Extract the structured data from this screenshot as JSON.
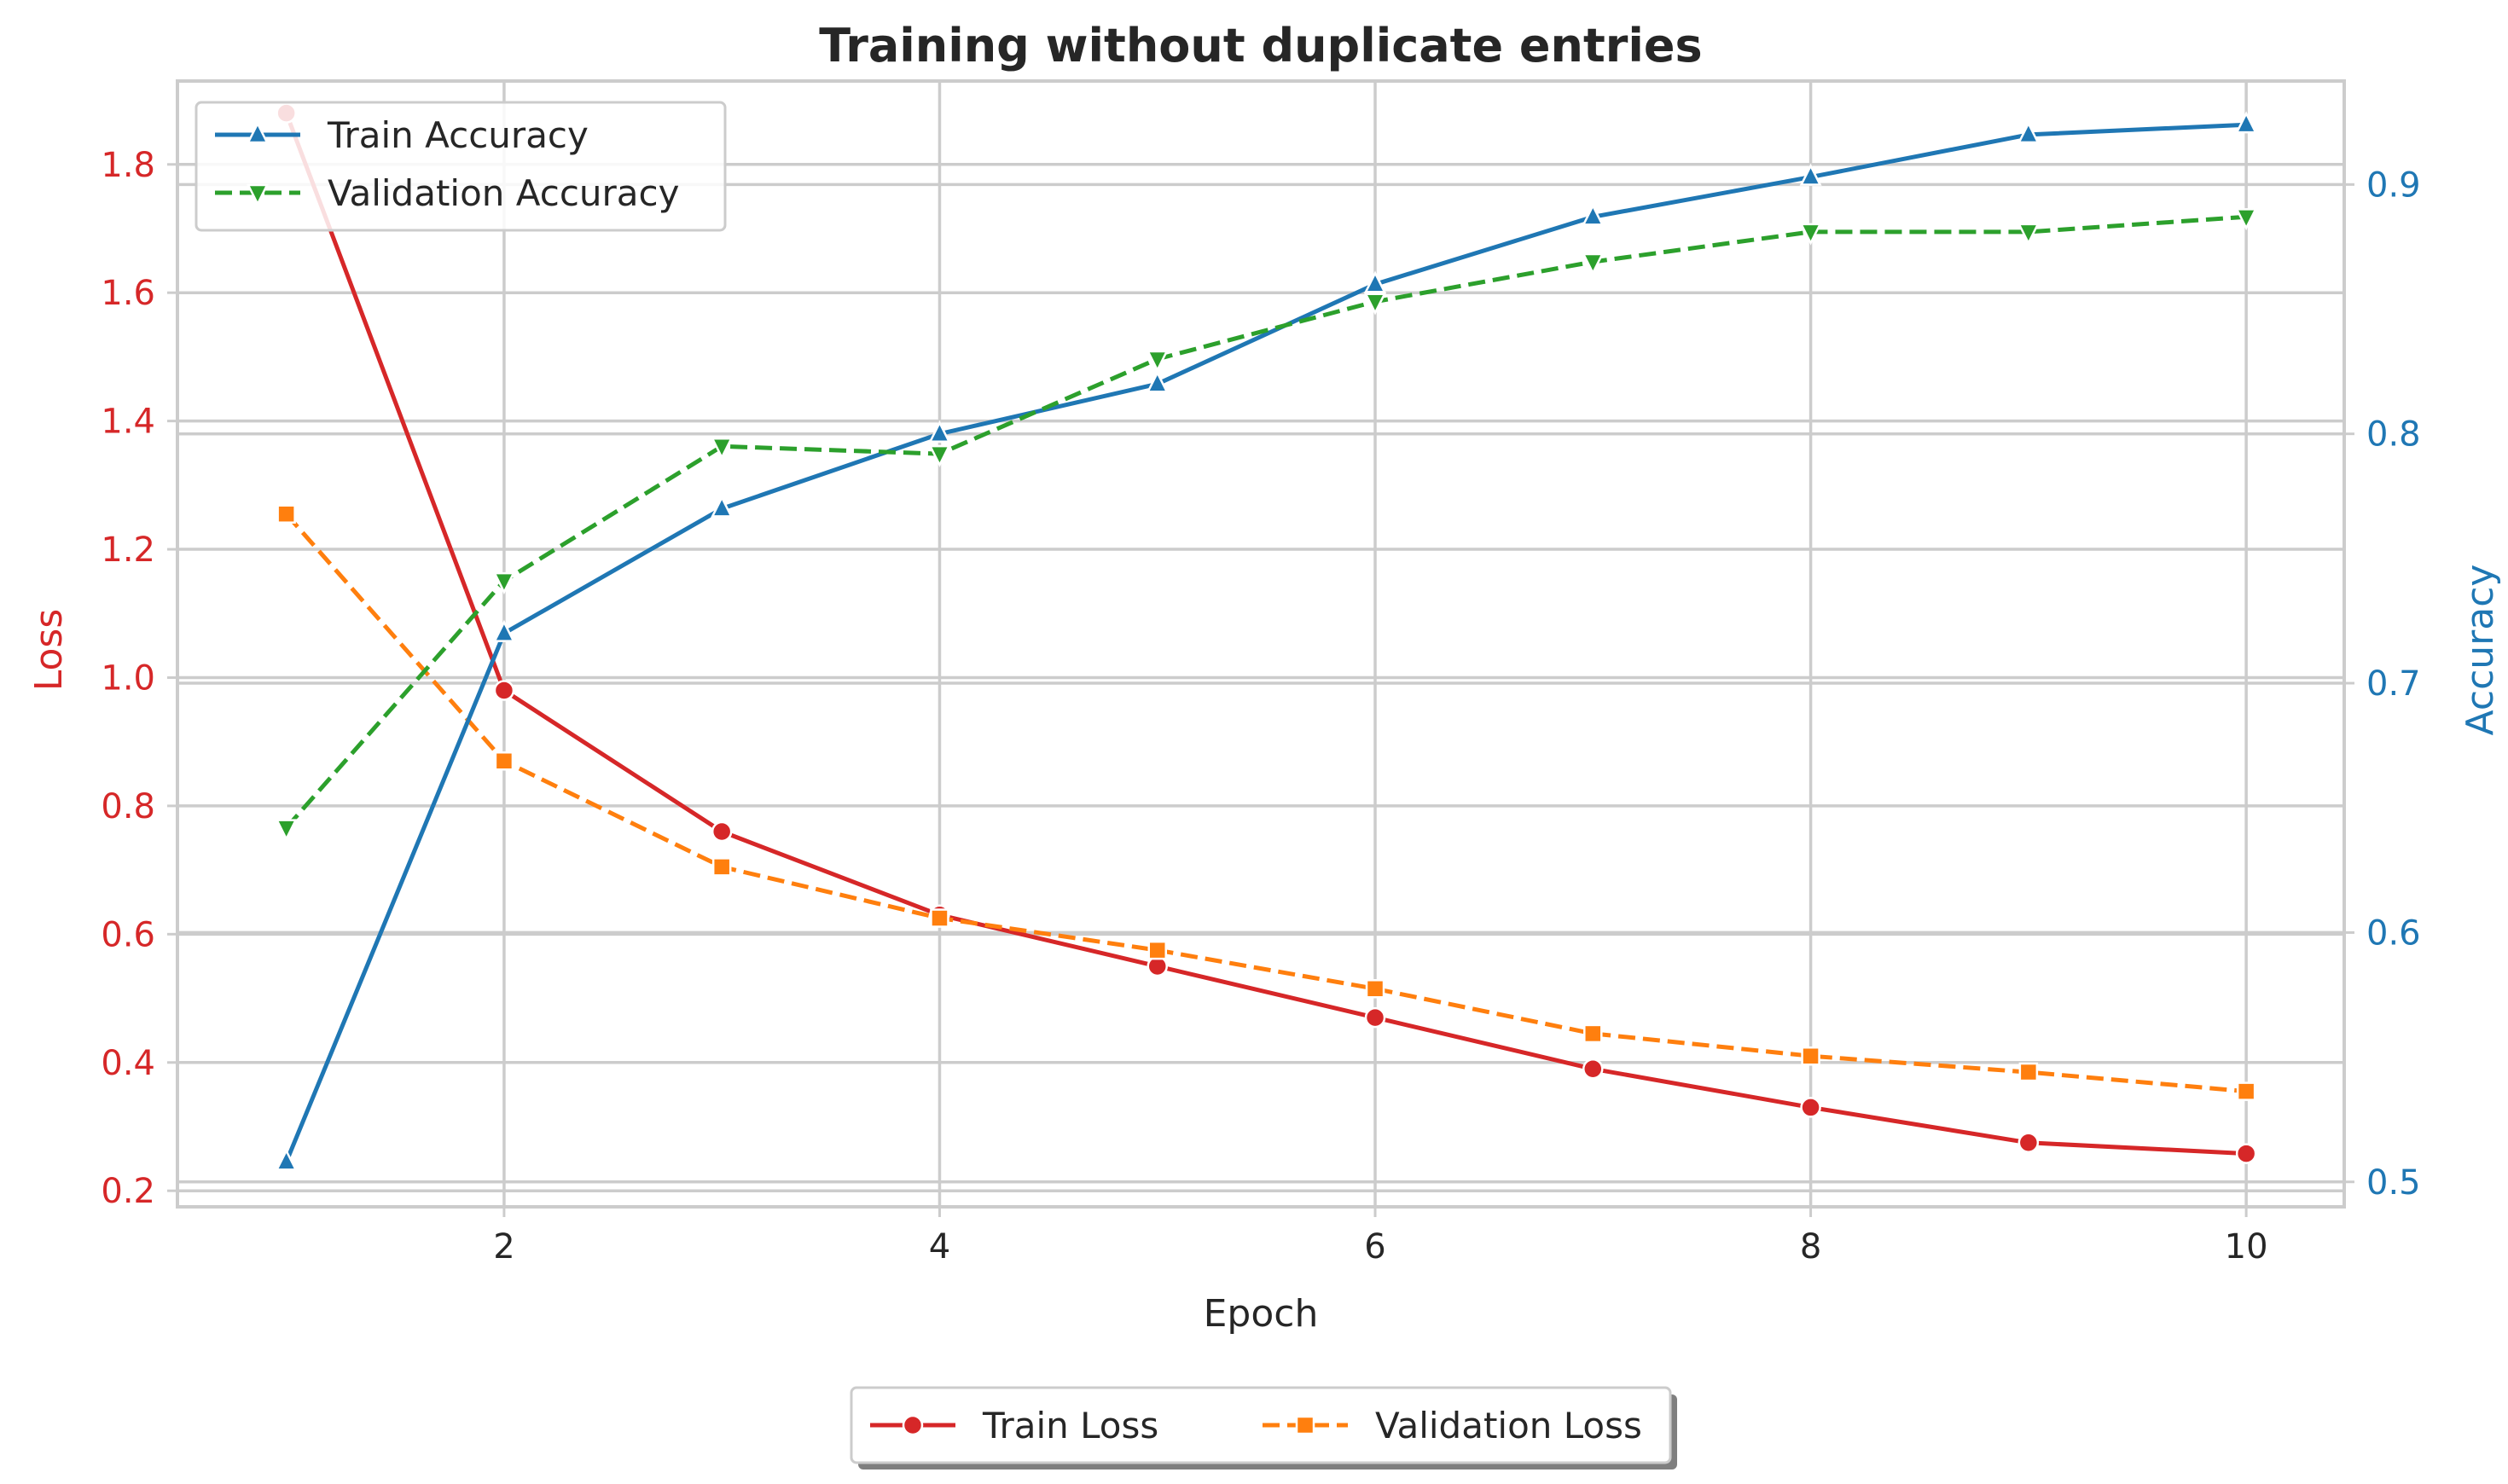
{
  "chart_data": {
    "type": "line",
    "title": "Training without duplicate entries",
    "xlabel": "Epoch",
    "ylabel_left": "Loss",
    "ylabel_right": "Accuracy",
    "x": [
      1,
      2,
      3,
      4,
      5,
      6,
      7,
      8,
      9,
      10
    ],
    "xlim": [
      0.5,
      10.45
    ],
    "xticks": [
      2,
      4,
      6,
      8,
      10
    ],
    "ylim_left": [
      0.175,
      1.93
    ],
    "yticks_left": [
      0.2,
      0.4,
      0.6,
      0.8,
      1.0,
      1.2,
      1.4,
      1.6,
      1.8
    ],
    "ylim_right": [
      0.49,
      0.9415
    ],
    "yticks_right": [
      0.5,
      0.6,
      0.7,
      0.8,
      0.9
    ],
    "grid": true,
    "loss_axis_color": "#d62728",
    "accuracy_axis_color": "#1f77b4",
    "series": [
      {
        "name": "Train Loss",
        "axis": "left",
        "color": "#d62728",
        "dash": "solid",
        "marker": "circle",
        "values": [
          1.88,
          0.98,
          0.76,
          0.63,
          0.55,
          0.47,
          0.39,
          0.33,
          0.275,
          0.258
        ]
      },
      {
        "name": "Validation Loss",
        "axis": "left",
        "color": "#ff7f0e",
        "dash": "dashed",
        "marker": "square",
        "values": [
          1.255,
          0.87,
          0.705,
          0.625,
          0.575,
          0.515,
          0.445,
          0.41,
          0.385,
          0.355
        ]
      },
      {
        "name": "Train Accuracy",
        "axis": "right",
        "color": "#1f77b4",
        "dash": "solid",
        "marker": "triangle-up",
        "values": [
          0.508,
          0.72,
          0.77,
          0.8,
          0.82,
          0.86,
          0.887,
          0.903,
          0.92,
          0.924
        ]
      },
      {
        "name": "Validation Accuracy",
        "axis": "right",
        "color": "#2ca02c",
        "dash": "dashed",
        "marker": "triangle-down",
        "values": [
          0.642,
          0.741,
          0.795,
          0.792,
          0.83,
          0.853,
          0.869,
          0.881,
          0.881,
          0.887
        ]
      }
    ],
    "legends": [
      {
        "placement": "upper-left",
        "entries": [
          "Train Accuracy",
          "Validation Accuracy"
        ]
      },
      {
        "placement": "below-center",
        "entries": [
          "Train Loss",
          "Validation Loss"
        ]
      }
    ]
  }
}
